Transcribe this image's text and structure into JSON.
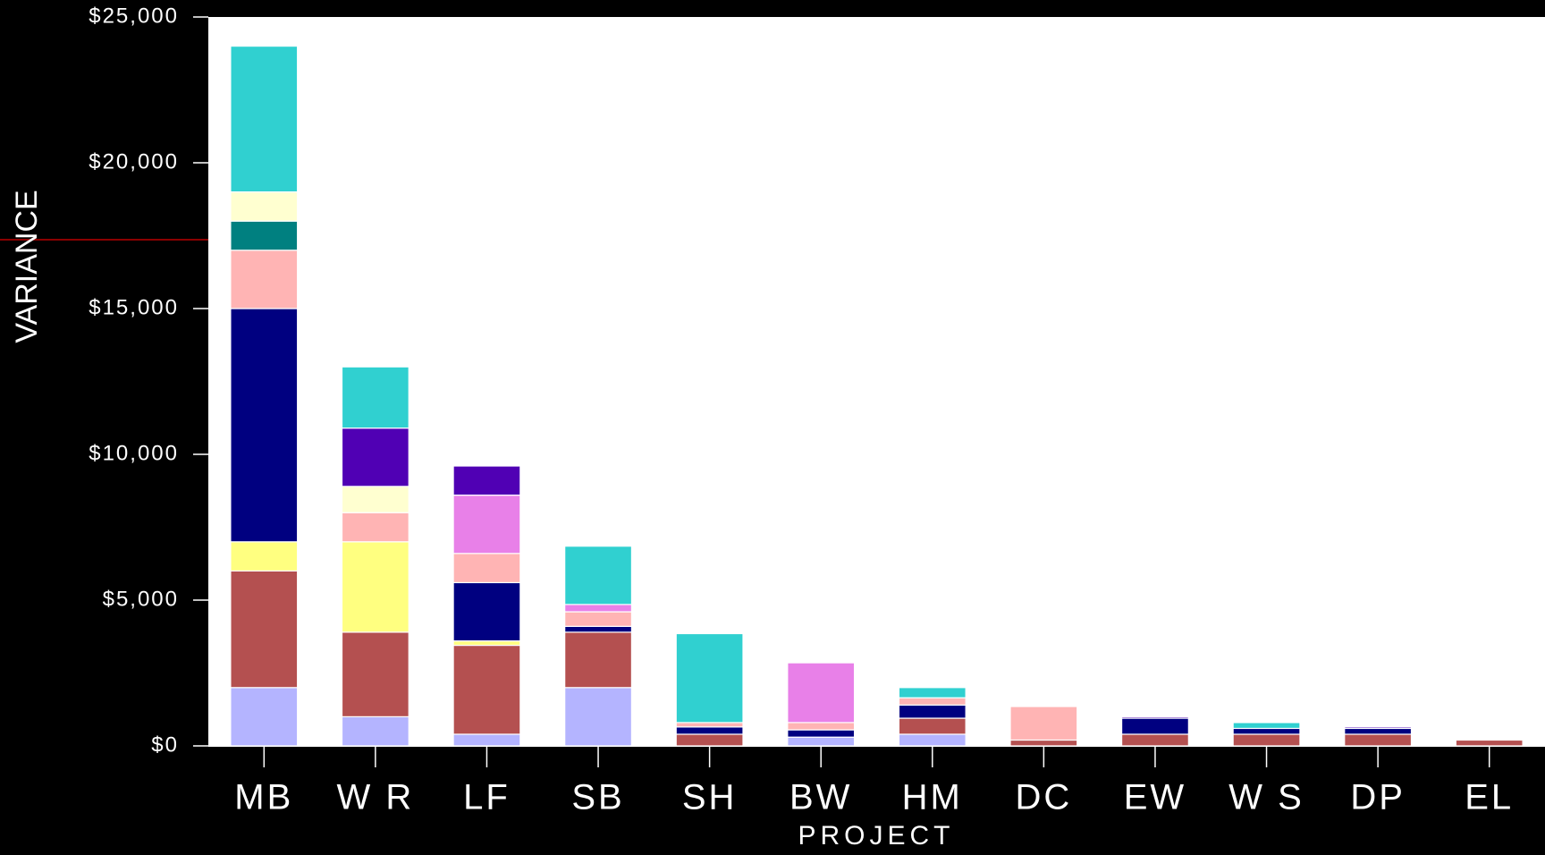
{
  "chart_data": {
    "type": "stacked_bar",
    "xlabel": "PROJECT",
    "ylabel": "VARIANCE",
    "categories": [
      "MB",
      "W R",
      "LF",
      "SB",
      "SH",
      "BW",
      "HM",
      "DC",
      "EW",
      "W S",
      "DP",
      "EL"
    ],
    "series": [
      {
        "color": "#b4b4ff",
        "values": [
          2000,
          1000,
          400,
          2000,
          0,
          300,
          400,
          0,
          0,
          0,
          0,
          0
        ]
      },
      {
        "color": "#b45050",
        "values": [
          4000,
          2900,
          3050,
          1900,
          400,
          0,
          550,
          200,
          400,
          400,
          400,
          200
        ]
      },
      {
        "color": "#ffff80",
        "values": [
          1000,
          3100,
          150,
          0,
          0,
          0,
          0,
          0,
          0,
          0,
          0,
          0
        ]
      },
      {
        "color": "#000080",
        "values": [
          8000,
          0,
          2000,
          200,
          250,
          250,
          450,
          0,
          550,
          200,
          200,
          0
        ]
      },
      {
        "color": "#ffb4b4",
        "values": [
          2000,
          1000,
          1000,
          500,
          150,
          250,
          250,
          1150,
          0,
          0,
          0,
          0
        ]
      },
      {
        "color": "#008080",
        "values": [
          1000,
          0,
          0,
          0,
          0,
          0,
          0,
          0,
          0,
          0,
          0,
          0
        ]
      },
      {
        "color": "#ffffd0",
        "values": [
          1000,
          900,
          0,
          0,
          0,
          0,
          0,
          0,
          0,
          0,
          0,
          0
        ]
      },
      {
        "color": "#e880e8",
        "values": [
          0,
          0,
          2000,
          250,
          0,
          2050,
          0,
          0,
          0,
          0,
          0,
          0
        ]
      },
      {
        "color": "#5000b4",
        "values": [
          0,
          2000,
          1000,
          0,
          0,
          0,
          0,
          0,
          50,
          0,
          50,
          0
        ]
      },
      {
        "color": "#30d0d0",
        "values": [
          5000,
          2100,
          0,
          2000,
          3050,
          0,
          350,
          0,
          0,
          200,
          0,
          0
        ]
      }
    ],
    "ylim": [
      0,
      25000
    ],
    "yticks": [
      {
        "value": 0,
        "label": "$0"
      },
      {
        "value": 5000,
        "label": "$5,000"
      },
      {
        "value": 10000,
        "label": "$10,000"
      },
      {
        "value": 15000,
        "label": "$15,000"
      },
      {
        "value": 20000,
        "label": "$20,000"
      },
      {
        "value": 25000,
        "label": "$25,000"
      }
    ]
  }
}
